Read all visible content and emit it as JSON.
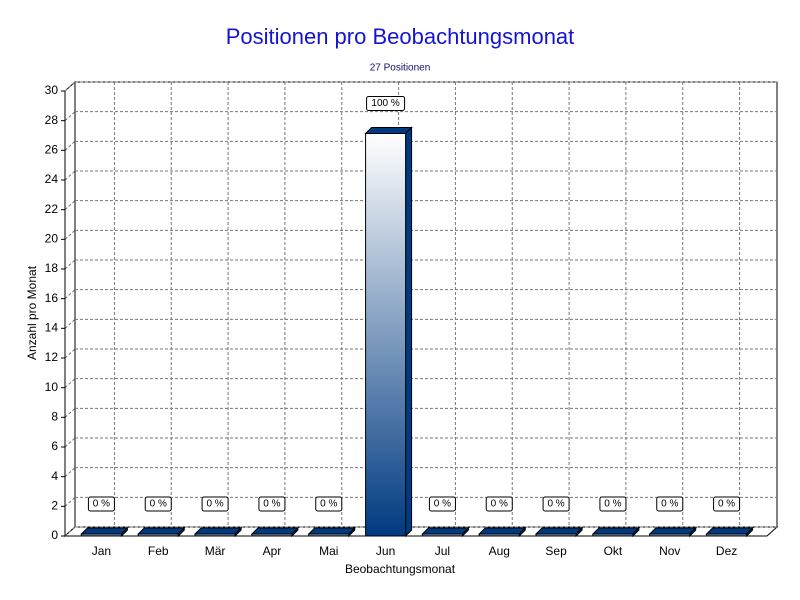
{
  "chart_data": {
    "type": "bar",
    "title": "Positionen pro Beobachtungsmonat",
    "subtitle": "27 Positionen",
    "x_label": "Beobachtungsmonat",
    "y_label": "Anzahl pro Monat",
    "categories": [
      "Jan",
      "Feb",
      "Mär",
      "Apr",
      "Mai",
      "Jun",
      "Jul",
      "Aug",
      "Sep",
      "Okt",
      "Nov",
      "Dez"
    ],
    "values": [
      0,
      0,
      0,
      0,
      0,
      27,
      0,
      0,
      0,
      0,
      0,
      0
    ],
    "percentages": [
      0,
      0,
      0,
      0,
      0,
      100,
      0,
      0,
      0,
      0,
      0,
      0
    ],
    "percentage_labels": [
      "0 %",
      "0 %",
      "0 %",
      "0 %",
      "0 %",
      "100 %",
      "0 %",
      "0 %",
      "0 %",
      "0 %",
      "0 %",
      "0 %"
    ],
    "color": "#003a80",
    "ylim": [
      0,
      30
    ],
    "yticks": [
      0,
      2,
      4,
      6,
      8,
      10,
      12,
      14,
      16,
      18,
      20,
      22,
      24,
      26,
      28,
      30
    ],
    "grid": true
  }
}
